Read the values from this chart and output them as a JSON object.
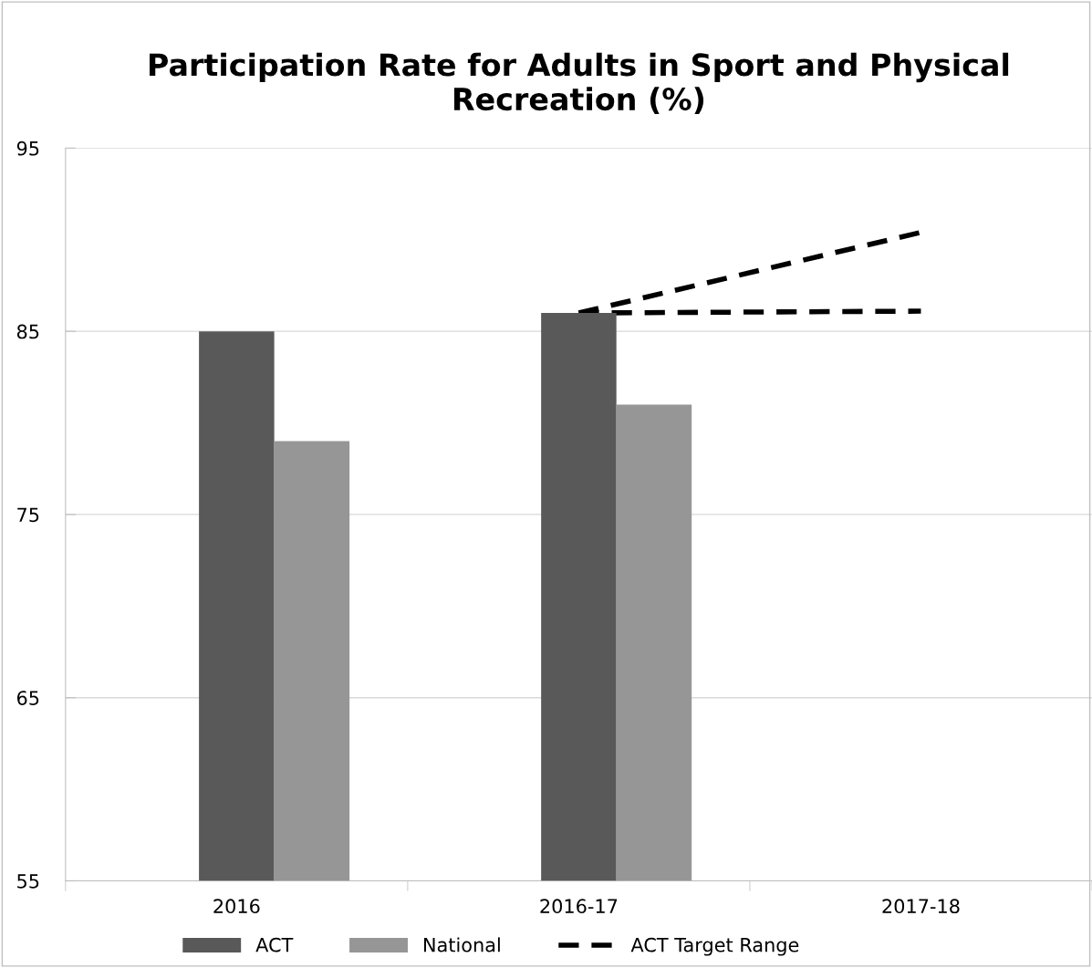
{
  "chart_data": {
    "type": "bar",
    "title": "Participation Rate for Adults in Sport and Physical\nRecreation (%)",
    "categories": [
      "2016",
      "2016-17",
      "2017-18"
    ],
    "series": [
      {
        "name": "ACT",
        "color": "#595959",
        "values": [
          85,
          86,
          null
        ]
      },
      {
        "name": "National",
        "color": "#969696",
        "values": [
          79,
          81,
          null
        ]
      },
      {
        "name": "ACT Target Range",
        "type": "line",
        "color": "#000000",
        "line_style": "dashed",
        "x": [
          "2016-17",
          "2017-18"
        ],
        "values": [
          86,
          90.4
        ]
      },
      {
        "type": "line",
        "color": "#000000",
        "line_style": "dashed",
        "x": [
          "2016-17",
          "2017-18"
        ],
        "values": [
          86,
          86.1
        ]
      }
    ],
    "ylim": [
      55,
      95
    ],
    "yticks": [
      55,
      65,
      75,
      85,
      95
    ],
    "grid": "y",
    "legend": "bottom"
  }
}
